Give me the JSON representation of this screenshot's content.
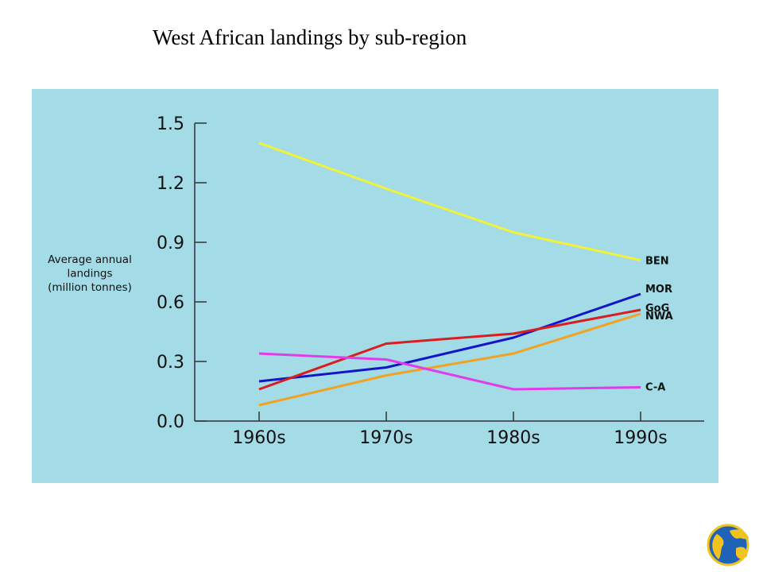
{
  "page": {
    "title": "West African landings by sub-region"
  },
  "colors": {
    "panel_background": "#a3dbe6",
    "axis": "#333333"
  },
  "chart_data": {
    "type": "line",
    "title": "West African landings by sub-region",
    "xlabel": "",
    "ylabel": [
      "Average annual",
      "landings",
      "(million tonnes)"
    ],
    "categories": [
      "1960s",
      "1970s",
      "1980s",
      "1990s"
    ],
    "ylim": [
      0.0,
      1.5
    ],
    "yticks": [
      0.0,
      0.3,
      0.6,
      0.9,
      1.2,
      1.5
    ],
    "ytick_labels": [
      "0.0",
      "0.3",
      "0.6",
      "0.9",
      "1.2",
      "1.5"
    ],
    "grid": false,
    "legend": "labels at line ends (right)",
    "series": [
      {
        "name": "BEN",
        "color": "#f2f23a",
        "values": [
          1.4,
          1.17,
          0.95,
          0.81
        ]
      },
      {
        "name": "MOR",
        "color": "#1414c8",
        "values": [
          0.2,
          0.27,
          0.42,
          0.64
        ]
      },
      {
        "name": "GoG",
        "color": "#d81e1e",
        "values": [
          0.16,
          0.39,
          0.44,
          0.56
        ]
      },
      {
        "name": "NWA",
        "color": "#f2a21e",
        "values": [
          0.08,
          0.23,
          0.34,
          0.54
        ]
      },
      {
        "name": "C-A",
        "color": "#e23ce8",
        "values": [
          0.34,
          0.31,
          0.16,
          0.17
        ]
      }
    ]
  },
  "logo": {
    "icon": "globe-logo-icon"
  }
}
